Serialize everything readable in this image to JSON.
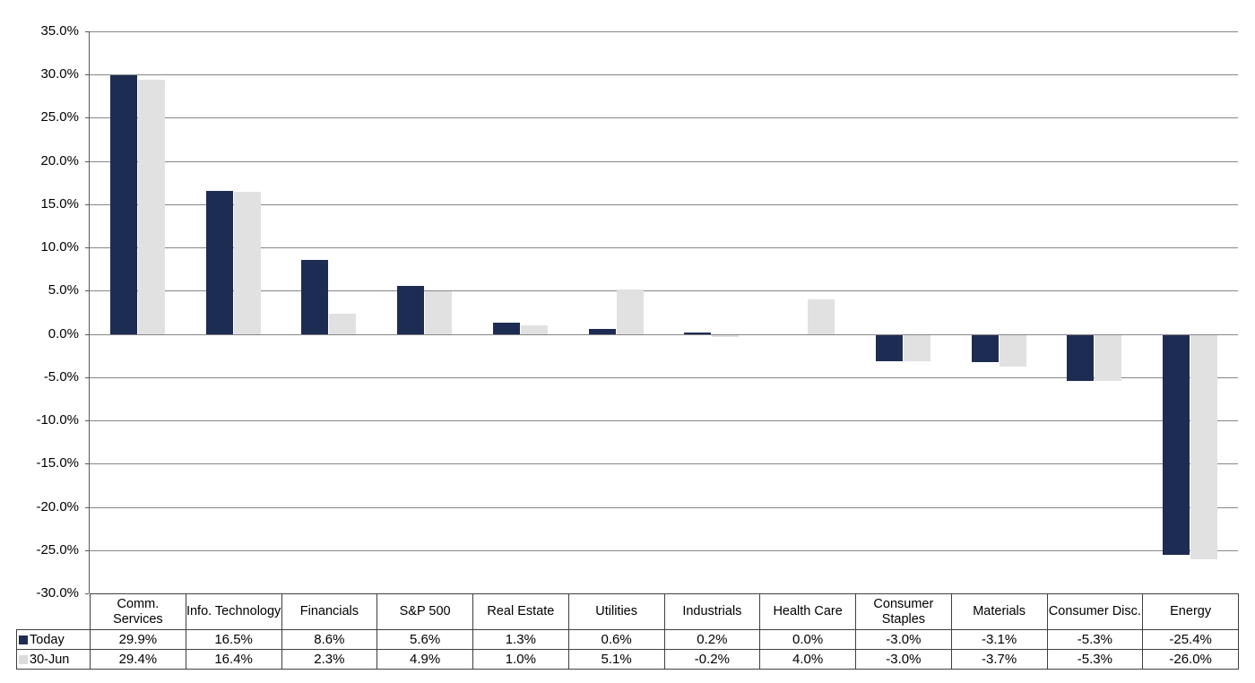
{
  "chart_data": {
    "type": "bar",
    "title": "",
    "xlabel": "",
    "ylabel": "",
    "categories": [
      "Comm. Services",
      "Info. Technology",
      "Financials",
      "S&P 500",
      "Real Estate",
      "Utilities",
      "Industrials",
      "Health Care",
      "Consumer Staples",
      "Materials",
      "Consumer Disc.",
      "Energy"
    ],
    "series": [
      {
        "name": "Today",
        "color": "#1d2c52",
        "swatch_color": "#1d2c52",
        "values": [
          29.9,
          16.5,
          8.6,
          5.6,
          1.3,
          0.6,
          0.2,
          0.0,
          -3.0,
          -3.1,
          -5.3,
          -25.4
        ],
        "labels": [
          "29.9%",
          "16.5%",
          "8.6%",
          "5.6%",
          "1.3%",
          "0.6%",
          "0.2%",
          "0.0%",
          "-3.0%",
          "-3.1%",
          "-5.3%",
          "-25.4%"
        ]
      },
      {
        "name": "30-Jun",
        "color": "#e1e1e1",
        "swatch_color": "#dcdcdc",
        "values": [
          29.4,
          16.4,
          2.3,
          4.9,
          1.0,
          5.1,
          -0.2,
          4.0,
          -3.0,
          -3.7,
          -5.3,
          -26.0
        ],
        "labels": [
          "29.4%",
          "16.4%",
          "2.3%",
          "4.9%",
          "1.0%",
          "5.1%",
          "-0.2%",
          "4.0%",
          "-3.0%",
          "-3.7%",
          "-5.3%",
          "-26.0%"
        ]
      }
    ],
    "ylim": [
      -30,
      35
    ],
    "ytick_step": 5,
    "yticks": [
      {
        "value": 35,
        "label": "35.0%"
      },
      {
        "value": 30,
        "label": "30.0%"
      },
      {
        "value": 25,
        "label": "25.0%"
      },
      {
        "value": 20,
        "label": "20.0%"
      },
      {
        "value": 15,
        "label": "15.0%"
      },
      {
        "value": 10,
        "label": "10.0%"
      },
      {
        "value": 5,
        "label": "5.0%"
      },
      {
        "value": 0,
        "label": "0.0%"
      },
      {
        "value": -5,
        "label": "-5.0%"
      },
      {
        "value": -10,
        "label": "-10.0%"
      },
      {
        "value": -15,
        "label": "-15.0%"
      },
      {
        "value": -20,
        "label": "-20.0%"
      },
      {
        "value": -25,
        "label": "-25.0%"
      },
      {
        "value": -30,
        "label": "-30.0%"
      }
    ],
    "grid": true,
    "legend_position": "data-table-left",
    "colors": {
      "grid_line": "#868686",
      "axis_line": "#595959",
      "table_border": "#3f3f3f",
      "text": "#000000",
      "background": "#ffffff"
    }
  }
}
